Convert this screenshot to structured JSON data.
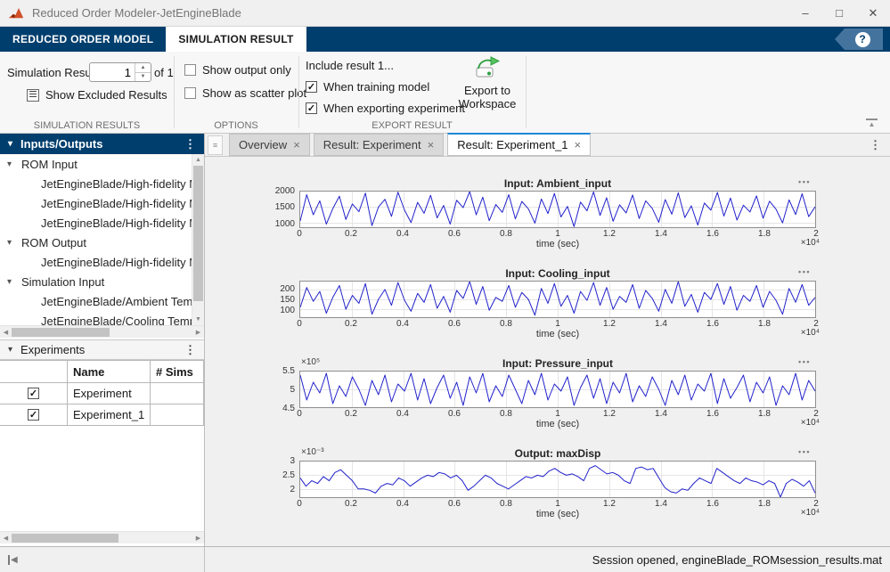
{
  "titlebar": {
    "title": "Reduced Order Modeler-JetEngineBlade"
  },
  "window_controls": {
    "minimize": "–",
    "maximize": "□",
    "close": "✕"
  },
  "icons": {
    "help": "?",
    "menu_dots": "⋮",
    "caret_down": "▾",
    "tab_close": "×",
    "tab_list": "≡",
    "plot_menu": "•••",
    "spin_up": "▲",
    "spin_down": "▼",
    "scroll_up": "▲",
    "scroll_down": "▼",
    "scroll_left": "◀",
    "scroll_right": "▶",
    "collapse_ribbon": "▲",
    "collapse_panel": "◀",
    "check": "✓"
  },
  "colors": {
    "accent_navy": "#003e6d",
    "tab_stripe": "#1e87d6",
    "line_blue": "#2222cc",
    "export_green": "#2e9f3e",
    "background": "#f0f0f0"
  },
  "ribbon": {
    "tabs": [
      {
        "label": "REDUCED ORDER MODEL",
        "active": false
      },
      {
        "label": "SIMULATION RESULT",
        "active": true
      }
    ],
    "simulation_results": {
      "section_label": "SIMULATION RESULTS",
      "spinner_label": "Simulation Result",
      "spinner_value": "1",
      "suffix": "of 1",
      "show_excluded_label": "Show Excluded Results"
    },
    "options": {
      "section_label": "OPTIONS",
      "checkboxes": [
        {
          "label": "Show output only",
          "checked": false
        },
        {
          "label": "Show as scatter plot",
          "checked": false
        }
      ]
    },
    "export": {
      "section_label": "EXPORT RESULT",
      "include_label": "Include result 1...",
      "checkboxes": [
        {
          "label": "When training model",
          "checked": true
        },
        {
          "label": "When exporting experiment",
          "checked": true
        }
      ],
      "export_button_label": "Export to Workspace"
    }
  },
  "left_panel": {
    "inputs_outputs": {
      "header": "Inputs/Outputs",
      "tree": [
        {
          "label": "ROM Input",
          "level": 0
        },
        {
          "label": "JetEngineBlade/High-fidelity Mo",
          "level": 1
        },
        {
          "label": "JetEngineBlade/High-fidelity Mo",
          "level": 1
        },
        {
          "label": "JetEngineBlade/High-fidelity Mo",
          "level": 1
        },
        {
          "label": "ROM Output",
          "level": 0
        },
        {
          "label": "JetEngineBlade/High-fidelity Mo",
          "level": 1
        },
        {
          "label": "Simulation Input",
          "level": 0
        },
        {
          "label": "JetEngineBlade/Ambient Tempe",
          "level": 1
        },
        {
          "label": "JetEngineBlade/Cooling Temper",
          "level": 1
        }
      ]
    },
    "experiments": {
      "header": "Experiments",
      "columns": [
        "",
        "Name",
        "# Sims"
      ],
      "rows": [
        {
          "checked": true,
          "name": "Experiment",
          "sims": ""
        },
        {
          "checked": true,
          "name": "Experiment_1",
          "sims": ""
        }
      ]
    }
  },
  "document": {
    "tabs": [
      {
        "label": "Overview",
        "active": false
      },
      {
        "label": "Result: Experiment",
        "active": false
      },
      {
        "label": "Result: Experiment_1",
        "active": true
      }
    ]
  },
  "statusbar": {
    "message": "Session opened, engineBlade_ROMsession_results.mat"
  },
  "chart_data": [
    {
      "type": "line",
      "title": "Input: Ambient_input",
      "xlabel": "time (sec)",
      "x_range": [
        0,
        20000
      ],
      "x_tick_labels": [
        "0",
        "0.2",
        "0.4",
        "0.6",
        "0.8",
        "1",
        "1.2",
        "1.4",
        "1.6",
        "1.8",
        "2"
      ],
      "x_multiplier": "×10⁴",
      "y_tick_values": [
        1000,
        1500,
        2000
      ],
      "y_tick_labels": [
        "1000",
        "1500",
        "2000"
      ],
      "y_multiplier": "",
      "ylim": [
        850,
        2000
      ],
      "grid": true,
      "line_color": "#2222cc",
      "values": [
        1050,
        1900,
        1250,
        1700,
        950,
        1450,
        1850,
        1100,
        1600,
        1350,
        1950,
        900,
        1500,
        1750,
        1200,
        1980,
        1400,
        1000,
        1650,
        1300,
        1880,
        1150,
        1550,
        950,
        1720,
        1480,
        2000,
        1250,
        1820,
        1060,
        1580,
        1330,
        1900,
        1120,
        1680,
        1440,
        980,
        1760,
        1290,
        1940,
        1180,
        1520,
        870,
        1660,
        1380,
        1990,
        1230,
        1800,
        1040,
        1570,
        1310,
        1890,
        1130,
        1700,
        1460,
        1010,
        1740,
        1270,
        1960,
        1160,
        1540,
        920,
        1630,
        1400,
        1970,
        1210,
        1790,
        1080,
        1560,
        1340,
        1860,
        1140,
        1690,
        1430,
        990,
        1730,
        1260,
        1930,
        1190,
        1510
      ]
    },
    {
      "type": "line",
      "title": "Input: Cooling_input",
      "xlabel": "time (sec)",
      "x_range": [
        0,
        20000
      ],
      "x_tick_labels": [
        "0",
        "0.2",
        "0.4",
        "0.6",
        "0.8",
        "1",
        "1.2",
        "1.4",
        "1.6",
        "1.8",
        "2"
      ],
      "x_multiplier": "×10⁴",
      "y_tick_values": [
        100,
        150,
        200
      ],
      "y_tick_labels": [
        "100",
        "150",
        "200"
      ],
      "y_multiplier": "",
      "ylim": [
        60,
        240
      ],
      "grid": true,
      "line_color": "#2222cc",
      "values": [
        110,
        210,
        140,
        190,
        80,
        160,
        220,
        100,
        170,
        130,
        230,
        75,
        150,
        200,
        120,
        235,
        145,
        90,
        180,
        135,
        225,
        105,
        165,
        85,
        195,
        155,
        240,
        125,
        215,
        95,
        160,
        140,
        220,
        110,
        185,
        150,
        70,
        205,
        130,
        230,
        115,
        170,
        80,
        190,
        145,
        235,
        120,
        210,
        100,
        165,
        135,
        225,
        105,
        195,
        155,
        90,
        200,
        130,
        240,
        115,
        175,
        85,
        185,
        150,
        230,
        125,
        215,
        95,
        170,
        140,
        220,
        110,
        190,
        145,
        75,
        205,
        135,
        225,
        120,
        160
      ]
    },
    {
      "type": "line",
      "title": "Input: Pressure_input",
      "xlabel": "time (sec)",
      "x_range": [
        0,
        20000
      ],
      "x_tick_labels": [
        "0",
        "0.2",
        "0.4",
        "0.6",
        "0.8",
        "1",
        "1.2",
        "1.4",
        "1.6",
        "1.8",
        "2"
      ],
      "x_multiplier": "×10⁴",
      "y_tick_values": [
        4.5,
        5,
        5.5
      ],
      "y_tick_labels": [
        "4.5",
        "5",
        "5.5"
      ],
      "y_multiplier": "×10⁵",
      "ylim": [
        4.5,
        5.5
      ],
      "grid": true,
      "line_color": "#2222cc",
      "values": [
        5.4,
        4.7,
        5.2,
        4.9,
        5.45,
        4.6,
        5.1,
        4.8,
        5.35,
        5.0,
        4.55,
        5.25,
        4.85,
        5.4,
        4.65,
        5.15,
        4.95,
        5.45,
        4.7,
        5.3,
        4.6,
        5.05,
        5.4,
        4.75,
        5.2,
        4.55,
        5.35,
        4.9,
        5.45,
        4.65,
        5.1,
        4.8,
        5.4,
        5.0,
        4.6,
        5.25,
        4.85,
        5.45,
        4.7,
        5.15,
        4.95,
        5.35,
        4.55,
        5.05,
        5.4,
        4.75,
        5.3,
        4.6,
        5.2,
        4.9,
        5.45,
        4.65,
        5.1,
        4.8,
        5.35,
        5.0,
        4.55,
        5.25,
        4.85,
        5.4,
        4.7,
        5.15,
        4.95,
        5.45,
        4.6,
        5.3,
        4.75,
        5.05,
        5.4,
        4.65,
        5.2,
        4.9,
        5.35,
        4.55,
        5.1,
        4.85,
        5.45,
        4.7,
        5.25,
        4.95
      ]
    },
    {
      "type": "line",
      "title": "Output: maxDisp",
      "xlabel": "time (sec)",
      "x_range": [
        0,
        20000
      ],
      "x_tick_labels": [
        "0",
        "0.2",
        "0.4",
        "0.6",
        "0.8",
        "1",
        "1.2",
        "1.4",
        "1.6",
        "1.8",
        "2"
      ],
      "x_multiplier": "×10⁴",
      "y_tick_values": [
        2,
        2.5,
        3
      ],
      "y_tick_labels": [
        "2",
        "2.5",
        "3"
      ],
      "y_multiplier": "×10⁻³",
      "ylim": [
        1.7,
        3.0
      ],
      "grid": true,
      "line_color": "#2222cc",
      "values": [
        2.4,
        2.1,
        2.3,
        2.2,
        2.45,
        2.3,
        2.6,
        2.7,
        2.5,
        2.3,
        2.0,
        2.0,
        1.95,
        1.85,
        2.1,
        2.2,
        2.15,
        2.4,
        2.3,
        2.1,
        2.25,
        2.4,
        2.5,
        2.45,
        2.6,
        2.55,
        2.4,
        2.5,
        2.3,
        1.95,
        2.1,
        2.3,
        2.5,
        2.4,
        2.2,
        2.1,
        2.0,
        2.15,
        2.3,
        2.45,
        2.4,
        2.5,
        2.45,
        2.65,
        2.75,
        2.6,
        2.5,
        2.55,
        2.45,
        2.3,
        2.75,
        2.85,
        2.7,
        2.55,
        2.6,
        2.5,
        2.3,
        2.2,
        2.75,
        2.8,
        2.7,
        2.75,
        2.4,
        2.05,
        1.9,
        1.85,
        2.0,
        1.95,
        2.2,
        2.4,
        2.3,
        2.2,
        2.75,
        2.6,
        2.45,
        2.3,
        2.2,
        2.4,
        2.3,
        2.25,
        2.15,
        2.3,
        2.2,
        1.7,
        2.2,
        2.35,
        2.25,
        2.1,
        2.3,
        1.85
      ]
    }
  ]
}
